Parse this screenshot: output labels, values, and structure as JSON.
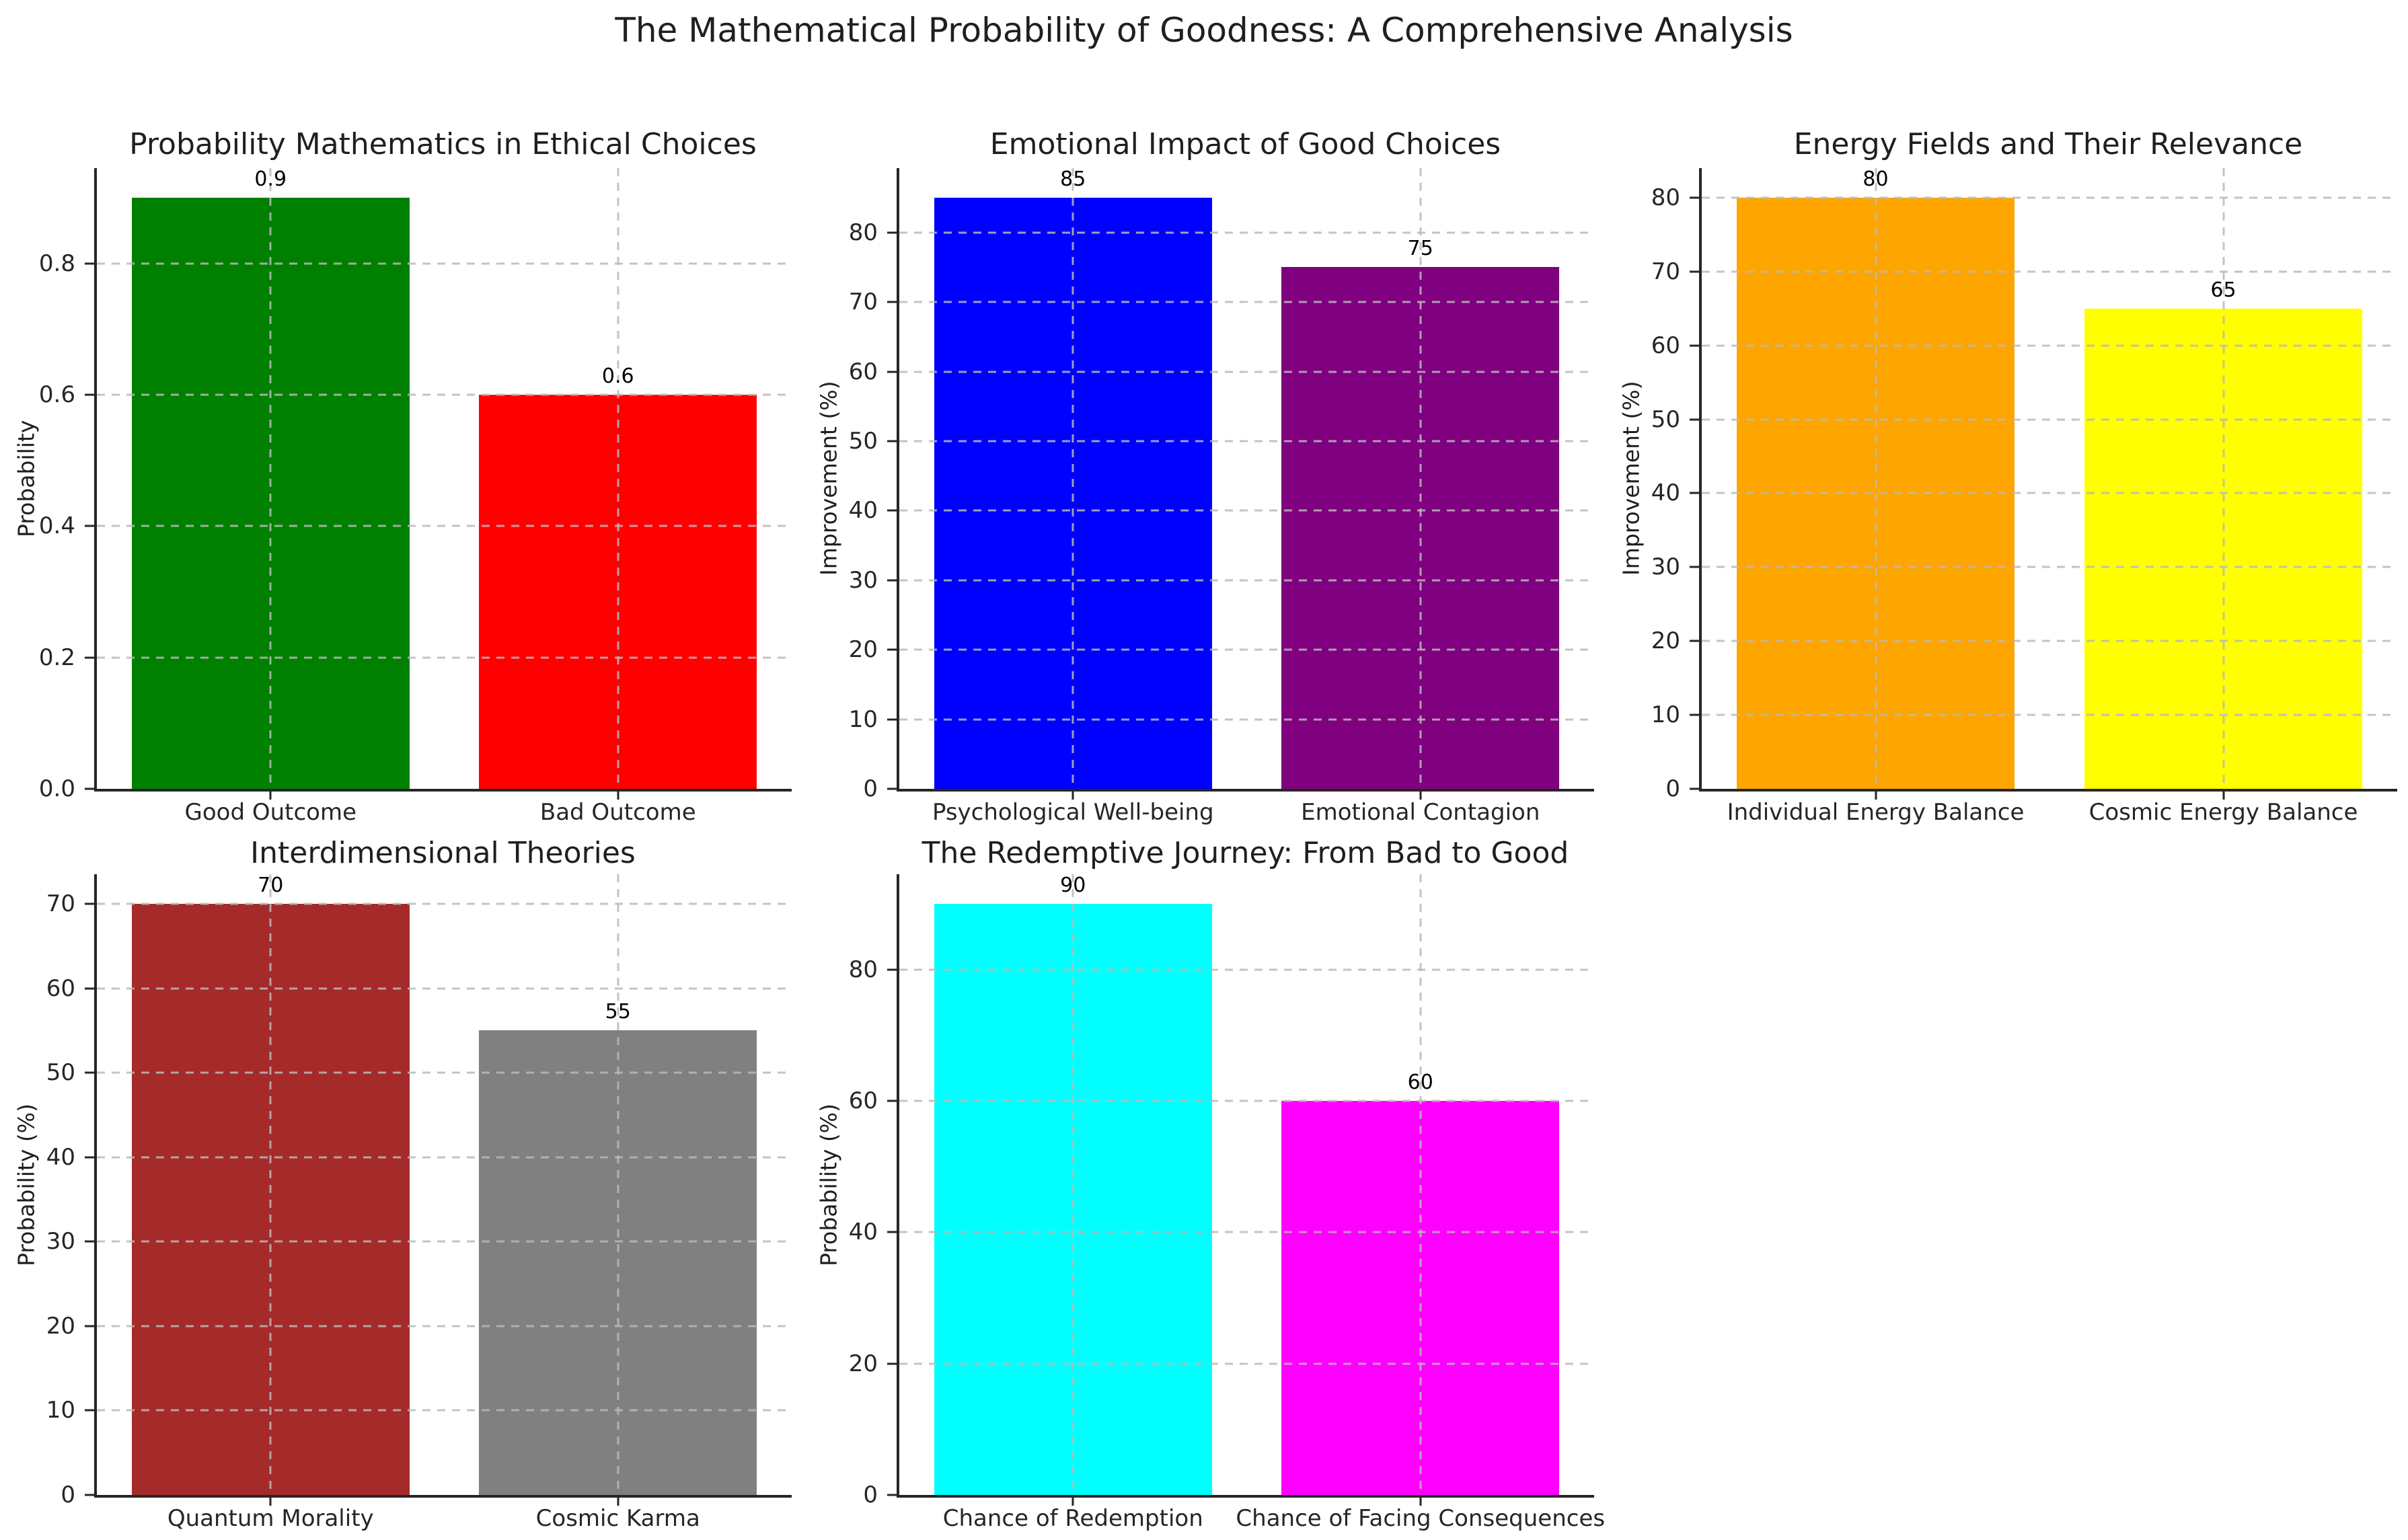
{
  "figure": {
    "title": "The Mathematical Probability of Goodness: A Comprehensive Analysis",
    "background": "#ffffff",
    "layout": "2 rows x 3 columns, 5 subplots, bottom-right slot empty"
  },
  "style": {
    "text_color": "#1f1f1f",
    "tick_color": "#262626",
    "spine_color": "#262626",
    "grid_color": "#b9b9b9",
    "grid_linestyle": "dashed",
    "grid_above_bars": true,
    "spines_visible": "left and bottom only"
  },
  "chart_data": [
    {
      "type": "bar",
      "title": "Probability Mathematics in Ethical Choices",
      "xlabel": "",
      "ylabel": "Probability",
      "categories": [
        "Good Outcome",
        "Bad Outcome"
      ],
      "values": [
        0.9,
        0.6
      ],
      "bar_labels": [
        "0.9",
        "0.6"
      ],
      "bar_colors": [
        "#008000",
        "#ff0000"
      ],
      "yticks": [
        0.0,
        0.2,
        0.4,
        0.6,
        0.8
      ],
      "ytick_labels": [
        "0.0",
        "0.2",
        "0.4",
        "0.6",
        "0.8"
      ],
      "ylim": [
        0,
        0.945
      ],
      "grid": true,
      "legend": "none"
    },
    {
      "type": "bar",
      "title": "Emotional Impact of Good Choices",
      "xlabel": "",
      "ylabel": "Improvement (%)",
      "categories": [
        "Psychological Well-being",
        "Emotional Contagion"
      ],
      "values": [
        85,
        75
      ],
      "bar_labels": [
        "85",
        "75"
      ],
      "bar_colors": [
        "#0000ff",
        "#800080"
      ],
      "yticks": [
        0,
        10,
        20,
        30,
        40,
        50,
        60,
        70,
        80
      ],
      "ytick_labels": [
        "0",
        "10",
        "20",
        "30",
        "40",
        "50",
        "60",
        "70",
        "80"
      ],
      "ylim": [
        0,
        89.25
      ],
      "grid": true,
      "legend": "none"
    },
    {
      "type": "bar",
      "title": "Energy Fields and Their Relevance",
      "xlabel": "",
      "ylabel": "Improvement (%)",
      "categories": [
        "Individual Energy Balance",
        "Cosmic Energy Balance"
      ],
      "values": [
        80,
        65
      ],
      "bar_labels": [
        "80",
        "65"
      ],
      "bar_colors": [
        "#ffa500",
        "#ffff00"
      ],
      "yticks": [
        0,
        10,
        20,
        30,
        40,
        50,
        60,
        70,
        80
      ],
      "ytick_labels": [
        "0",
        "10",
        "20",
        "30",
        "40",
        "50",
        "60",
        "70",
        "80"
      ],
      "ylim": [
        0,
        84
      ],
      "grid": true,
      "legend": "none"
    },
    {
      "type": "bar",
      "title": "Interdimensional Theories",
      "xlabel": "",
      "ylabel": "Probability (%)",
      "categories": [
        "Quantum Morality",
        "Cosmic Karma"
      ],
      "values": [
        70,
        55
      ],
      "bar_labels": [
        "70",
        "55"
      ],
      "bar_colors": [
        "#a52a2a",
        "#808080"
      ],
      "yticks": [
        0,
        10,
        20,
        30,
        40,
        50,
        60,
        70
      ],
      "ytick_labels": [
        "0",
        "10",
        "20",
        "30",
        "40",
        "50",
        "60",
        "70"
      ],
      "ylim": [
        0,
        73.5
      ],
      "grid": true,
      "legend": "none"
    },
    {
      "type": "bar",
      "title": "The Redemptive Journey: From Bad to Good",
      "xlabel": "",
      "ylabel": "Probability (%)",
      "categories": [
        "Chance of Redemption",
        "Chance of Facing Consequences"
      ],
      "values": [
        90,
        60
      ],
      "bar_labels": [
        "90",
        "60"
      ],
      "bar_colors": [
        "#00ffff",
        "#ff00ff"
      ],
      "yticks": [
        0,
        20,
        40,
        60,
        80
      ],
      "ytick_labels": [
        "0",
        "20",
        "40",
        "60",
        "80"
      ],
      "ylim": [
        0,
        94.5
      ],
      "grid": true,
      "legend": "none"
    }
  ]
}
